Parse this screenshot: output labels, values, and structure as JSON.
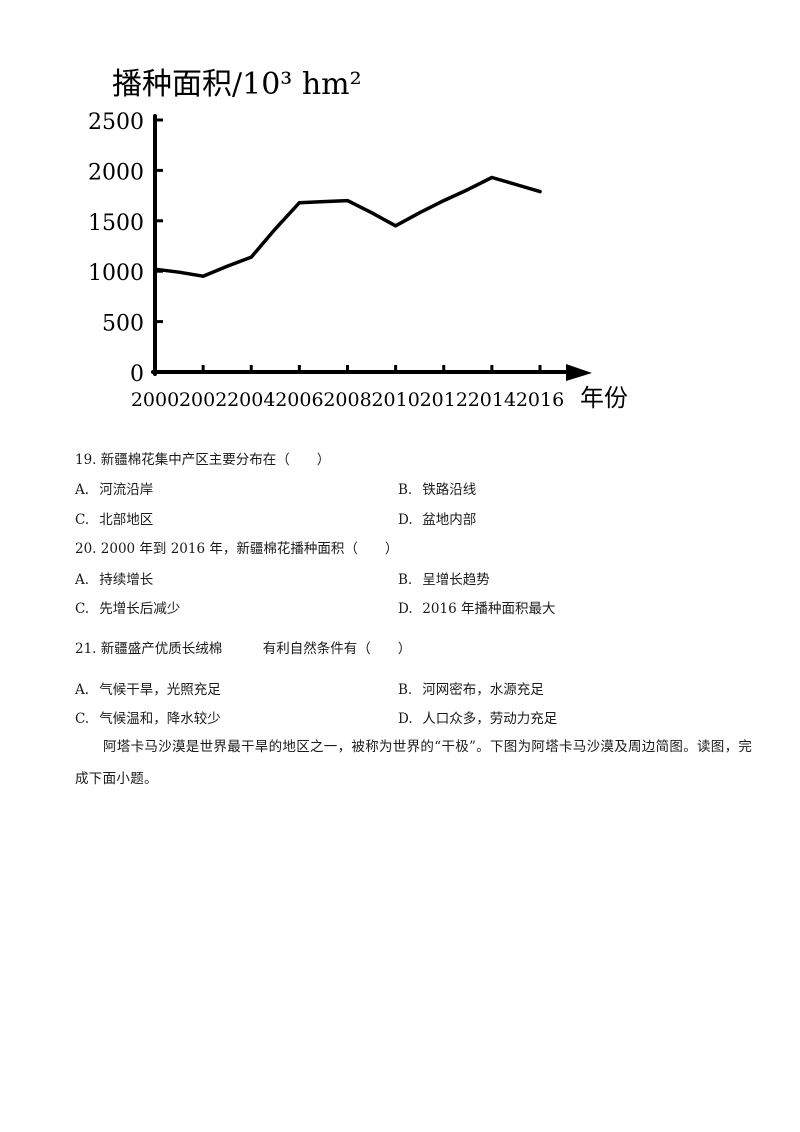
{
  "chart_data": {
    "type": "line",
    "title": "播种面积/10³ hm²",
    "xlabel": "年份",
    "ylabel": "播种面积/10³ hm²",
    "x": [
      2000,
      2002,
      2004,
      2006,
      2008,
      2010,
      2012,
      2014,
      2016
    ],
    "y_ticks": [
      0,
      500,
      1000,
      1500,
      2000,
      2500
    ],
    "ylim": [
      0,
      2500
    ],
    "xlim": [
      2000,
      2017.5
    ],
    "series": [
      {
        "points": [
          [
            2000,
            1020
          ],
          [
            2001,
            990
          ],
          [
            2002,
            950
          ],
          [
            2003,
            1050
          ],
          [
            2004,
            1140
          ],
          [
            2005,
            1420
          ],
          [
            2006,
            1680
          ],
          [
            2007,
            1690
          ],
          [
            2008,
            1700
          ],
          [
            2009,
            1580
          ],
          [
            2010,
            1450
          ],
          [
            2011,
            1580
          ],
          [
            2012,
            1700
          ],
          [
            2013,
            1810
          ],
          [
            2014,
            1930
          ],
          [
            2015,
            1860
          ],
          [
            2016,
            1790
          ]
        ]
      }
    ],
    "grid": false
  },
  "questions": [
    {
      "stem": "19. 新疆棉花集中产区主要分布在（　　）",
      "options": [
        {
          "letter": "A.",
          "text": "河流沿岸"
        },
        {
          "letter": "B.",
          "text": "铁路沿线"
        },
        {
          "letter": "C.",
          "text": "北部地区"
        },
        {
          "letter": "D.",
          "text": "盆地内部"
        }
      ]
    },
    {
      "stem": "20. 2000 年到 2016 年，新疆棉花播种面积（　　）",
      "options": [
        {
          "letter": "A.",
          "text": "持续增长"
        },
        {
          "letter": "B.",
          "text": "呈增长趋势"
        },
        {
          "letter": "C.",
          "text": "先增长后减少"
        },
        {
          "letter": "D.",
          "text": "2016 年播种面积最大"
        }
      ]
    },
    {
      "stem": "21. 新疆盛产优质长绒棉　　　有利自然条件有（　　）",
      "options": [
        {
          "letter": "A.",
          "text": "气候干旱，光照充足"
        },
        {
          "letter": "B.",
          "text": "河网密布，水源充足"
        },
        {
          "letter": "C.",
          "text": "气候温和，降水较少"
        },
        {
          "letter": "D.",
          "text": "人口众多，劳动力充足"
        }
      ]
    }
  ],
  "passage": "阿塔卡马沙漠是世界最干旱的地区之一，被称为世界的“干极”。下图为阿塔卡马沙漠及周边简图。读图，完成下面小题。"
}
